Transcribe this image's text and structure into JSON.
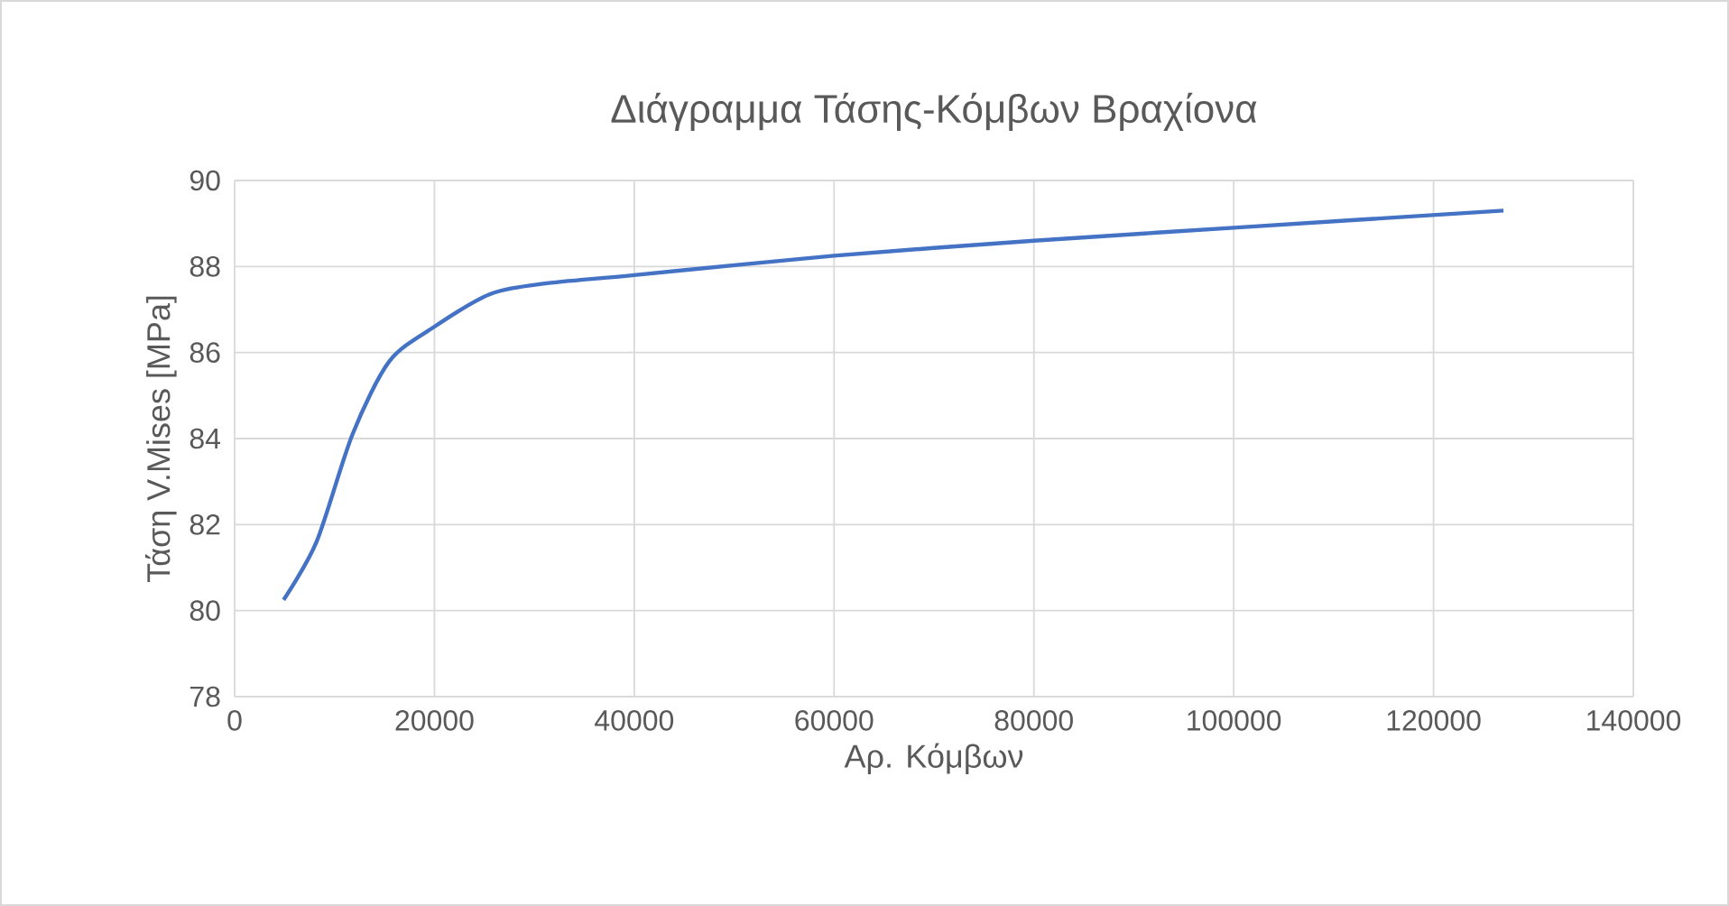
{
  "chart_data": {
    "type": "line",
    "title": "Διάγραμμα Τάσης-Κόμβων Βραχίονα",
    "xlabel": "Αρ. Κόμβων",
    "ylabel": "Τάση V.Mises [MPa]",
    "x": [
      4900,
      8200,
      11800,
      15500,
      20000,
      25500,
      30900,
      40000,
      60000,
      80000,
      100000,
      127000
    ],
    "series": [
      {
        "color": "#4472c4",
        "values": [
          80.25,
          81.6,
          84.1,
          85.8,
          86.6,
          87.35,
          87.6,
          87.8,
          88.25,
          88.6,
          88.9,
          89.3
        ]
      }
    ],
    "xlim": [
      0,
      140000
    ],
    "ylim": [
      78,
      90
    ],
    "xticks": [
      0,
      20000,
      40000,
      60000,
      80000,
      100000,
      120000,
      140000
    ],
    "yticks": [
      78,
      80,
      82,
      84,
      86,
      88,
      90
    ],
    "grid": true
  }
}
